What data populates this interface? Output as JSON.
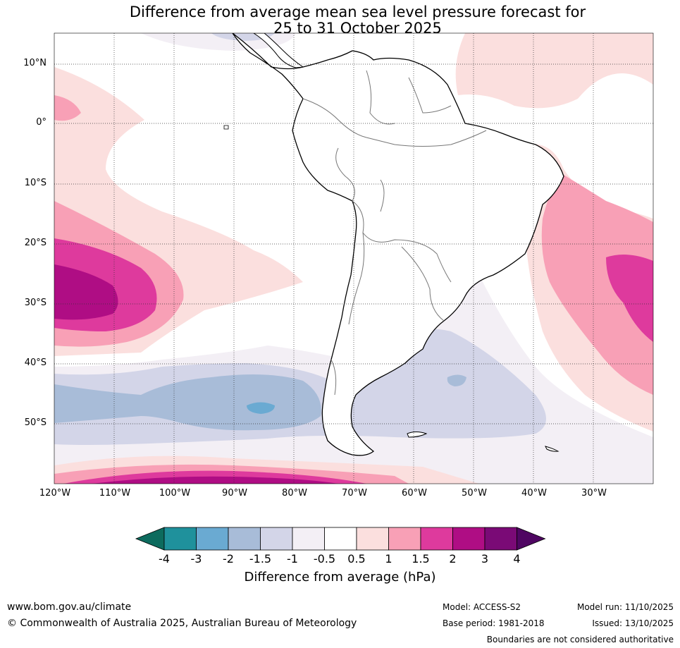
{
  "title": {
    "line1": "Difference from average mean sea level pressure forecast for",
    "line2": "25 to 31 October 2025"
  },
  "map": {
    "region": "South America",
    "lat_labels": [
      "10°N",
      "0°",
      "10°S",
      "20°S",
      "30°S",
      "40°S",
      "50°S"
    ],
    "lon_labels": [
      "120°W",
      "110°W",
      "100°W",
      "90°W",
      "80°W",
      "70°W",
      "60°W",
      "50°W",
      "40°W",
      "30°W"
    ]
  },
  "colorbar": {
    "title": "Difference from average (hPa)",
    "tick_labels": [
      "-4",
      "-3",
      "-2",
      "-1.5",
      "-1",
      "-0.5",
      "0.5",
      "1",
      "1.5",
      "2",
      "3",
      "4"
    ],
    "colors": [
      "#0d6b5e",
      "#1f919c",
      "#6aaad2",
      "#a8bcd8",
      "#d3d5e8",
      "#f3eff5",
      "#ffffff",
      "#fbdfde",
      "#f8a0b6",
      "#de3a9d",
      "#af0d84",
      "#7a0a76",
      "#4f0662"
    ]
  },
  "footer": {
    "url": "www.bom.gov.au/climate",
    "copyright": "© Commonwealth of Australia 2025, Australian Bureau of Meteorology",
    "model": "Model: ACCESS-S2",
    "base_period": "Base period: 1981-2018",
    "model_run": "Model run: 11/10/2025",
    "issued": "Issued: 13/10/2025",
    "disclaimer": "Boundaries are not considered authoritative"
  }
}
